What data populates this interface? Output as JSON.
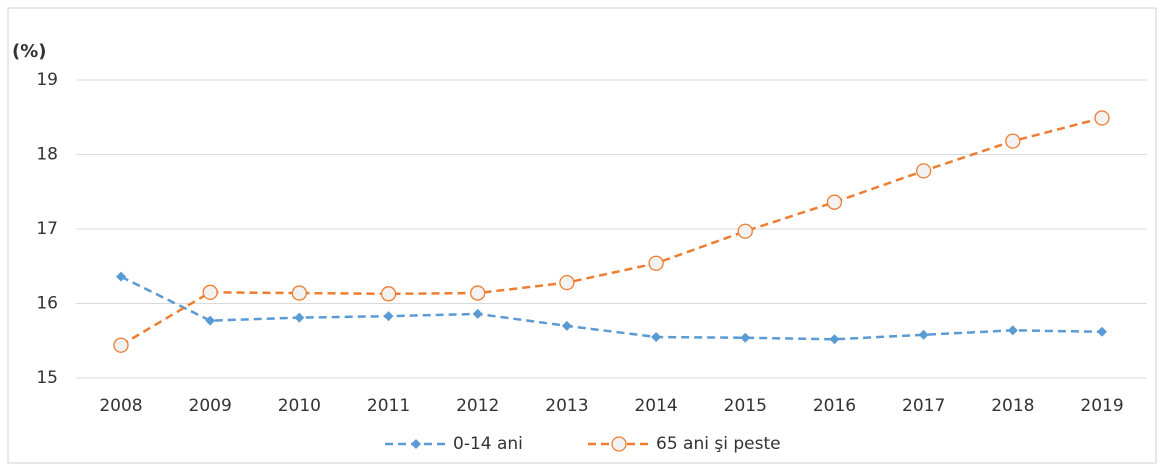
{
  "chart_data": {
    "type": "line",
    "y_label": "(%)",
    "categories": [
      "2008",
      "2009",
      "2010",
      "2011",
      "2012",
      "2013",
      "2014",
      "2015",
      "2016",
      "2017",
      "2018",
      "2019"
    ],
    "series": [
      {
        "name": "0-14 ani",
        "color": "#5b9bd5",
        "marker": "diamond",
        "values": [
          16.36,
          15.77,
          15.81,
          15.83,
          15.86,
          15.7,
          15.55,
          15.54,
          15.52,
          15.58,
          15.64,
          15.62
        ]
      },
      {
        "name": "65 ani şi peste",
        "color": "#ed7d31",
        "marker": "circle",
        "values": [
          15.44,
          16.15,
          16.14,
          16.13,
          16.14,
          16.28,
          16.54,
          16.97,
          17.36,
          17.78,
          18.18,
          18.49
        ]
      }
    ],
    "ylim": [
      15,
      19
    ],
    "yticks": [
      15,
      16,
      17,
      18,
      19
    ],
    "grid": true,
    "legend": "bottom"
  }
}
